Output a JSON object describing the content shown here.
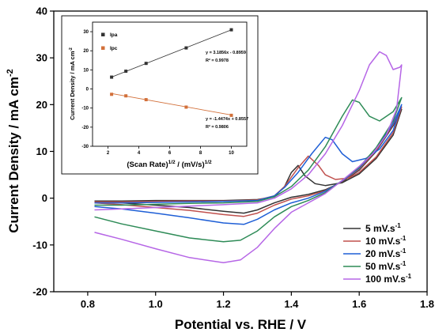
{
  "chart_data": [
    {
      "type": "line",
      "xlabel": "Potential vs. RHE / V",
      "ylabel": "Current Density / mA cm",
      "ylabel_sup": "-2",
      "xlim": [
        0.7,
        1.8
      ],
      "ylim": [
        -20,
        40
      ],
      "xticks": [
        "0.8",
        "1.0",
        "1.2",
        "1.4",
        "1.6",
        "1.8"
      ],
      "xtick_values": [
        0.8,
        1.0,
        1.2,
        1.4,
        1.6,
        1.8
      ],
      "yticks": [
        "-20",
        "-10",
        "0",
        "10",
        "20",
        "30",
        "40"
      ],
      "ytick_values": [
        -20,
        -10,
        0,
        10,
        20,
        30,
        40
      ],
      "grid": false,
      "legend_position": "bottom-right",
      "series": [
        {
          "name": "5 mV.s",
          "name_sup": "-1",
          "color": "#333333",
          "points": [
            [
              0.82,
              -0.6
            ],
            [
              0.9,
              -0.6
            ],
            [
              1.0,
              -0.5
            ],
            [
              1.1,
              -0.5
            ],
            [
              1.2,
              -0.5
            ],
            [
              1.3,
              -0.3
            ],
            [
              1.35,
              0.3
            ],
            [
              1.38,
              2.5
            ],
            [
              1.4,
              5.5
            ],
            [
              1.42,
              7.0
            ],
            [
              1.44,
              4.8
            ],
            [
              1.47,
              3.1
            ],
            [
              1.5,
              2.7
            ],
            [
              1.55,
              3.3
            ],
            [
              1.6,
              5.2
            ],
            [
              1.65,
              8.5
            ],
            [
              1.7,
              13.5
            ],
            [
              1.725,
              19.0
            ],
            [
              1.7,
              15.5
            ],
            [
              1.65,
              10.0
            ],
            [
              1.6,
              6.0
            ],
            [
              1.55,
              3.5
            ],
            [
              1.5,
              1.8
            ],
            [
              1.45,
              0.8
            ],
            [
              1.4,
              0.2
            ],
            [
              1.35,
              -1.0
            ],
            [
              1.3,
              -2.5
            ],
            [
              1.26,
              -3.2
            ],
            [
              1.2,
              -2.8
            ],
            [
              1.1,
              -2.0
            ],
            [
              1.0,
              -1.5
            ],
            [
              0.9,
              -1.0
            ],
            [
              0.82,
              -0.7
            ]
          ]
        },
        {
          "name": "10 mV.s",
          "name_sup": "-1",
          "color": "#c0504d",
          "points": [
            [
              0.82,
              -0.8
            ],
            [
              0.9,
              -0.8
            ],
            [
              1.0,
              -0.7
            ],
            [
              1.1,
              -0.6
            ],
            [
              1.2,
              -0.6
            ],
            [
              1.3,
              -0.4
            ],
            [
              1.35,
              0.5
            ],
            [
              1.38,
              2.5
            ],
            [
              1.42,
              6.5
            ],
            [
              1.45,
              9.0
            ],
            [
              1.48,
              7.0
            ],
            [
              1.5,
              5.0
            ],
            [
              1.53,
              4.0
            ],
            [
              1.57,
              4.3
            ],
            [
              1.6,
              5.5
            ],
            [
              1.65,
              8.8
            ],
            [
              1.7,
              14.0
            ],
            [
              1.725,
              19.5
            ],
            [
              1.7,
              15.8
            ],
            [
              1.65,
              10.2
            ],
            [
              1.6,
              6.2
            ],
            [
              1.55,
              3.6
            ],
            [
              1.5,
              1.6
            ],
            [
              1.45,
              0.5
            ],
            [
              1.4,
              -0.2
            ],
            [
              1.35,
              -1.5
            ],
            [
              1.3,
              -3.2
            ],
            [
              1.26,
              -3.9
            ],
            [
              1.2,
              -3.5
            ],
            [
              1.1,
              -2.6
            ],
            [
              1.0,
              -2.0
            ],
            [
              0.9,
              -1.4
            ],
            [
              0.82,
              -1.0
            ]
          ]
        },
        {
          "name": "20 mV.s",
          "name_sup": "-1",
          "color": "#1f5fd6",
          "points": [
            [
              0.82,
              -1.0
            ],
            [
              0.9,
              -1.0
            ],
            [
              1.0,
              -0.9
            ],
            [
              1.1,
              -0.8
            ],
            [
              1.2,
              -0.7
            ],
            [
              1.3,
              -0.5
            ],
            [
              1.35,
              0.5
            ],
            [
              1.38,
              2.3
            ],
            [
              1.42,
              5.5
            ],
            [
              1.46,
              9.5
            ],
            [
              1.5,
              13.0
            ],
            [
              1.52,
              12.5
            ],
            [
              1.55,
              9.5
            ],
            [
              1.58,
              7.8
            ],
            [
              1.62,
              8.5
            ],
            [
              1.66,
              10.5
            ],
            [
              1.7,
              14.5
            ],
            [
              1.725,
              20.0
            ],
            [
              1.7,
              16.0
            ],
            [
              1.65,
              10.5
            ],
            [
              1.6,
              6.4
            ],
            [
              1.55,
              3.7
            ],
            [
              1.5,
              1.5
            ],
            [
              1.45,
              0.0
            ],
            [
              1.4,
              -1.0
            ],
            [
              1.35,
              -2.5
            ],
            [
              1.3,
              -4.5
            ],
            [
              1.26,
              -5.6
            ],
            [
              1.2,
              -5.3
            ],
            [
              1.1,
              -4.2
            ],
            [
              1.0,
              -3.2
            ],
            [
              0.9,
              -2.3
            ],
            [
              0.82,
              -1.8
            ]
          ]
        },
        {
          "name": "50 mV.s",
          "name_sup": "-1",
          "color": "#2e8b57",
          "points": [
            [
              0.82,
              -1.5
            ],
            [
              0.9,
              -1.5
            ],
            [
              1.0,
              -1.3
            ],
            [
              1.1,
              -1.1
            ],
            [
              1.2,
              -1.0
            ],
            [
              1.3,
              -0.7
            ],
            [
              1.35,
              0.3
            ],
            [
              1.4,
              2.5
            ],
            [
              1.45,
              6.0
            ],
            [
              1.5,
              11.0
            ],
            [
              1.55,
              17.5
            ],
            [
              1.58,
              21.0
            ],
            [
              1.6,
              20.5
            ],
            [
              1.63,
              17.5
            ],
            [
              1.66,
              16.5
            ],
            [
              1.7,
              18.5
            ],
            [
              1.725,
              21.5
            ],
            [
              1.7,
              16.5
            ],
            [
              1.65,
              10.8
            ],
            [
              1.6,
              6.6
            ],
            [
              1.55,
              3.8
            ],
            [
              1.5,
              1.2
            ],
            [
              1.45,
              -0.5
            ],
            [
              1.4,
              -1.8
            ],
            [
              1.35,
              -4.0
            ],
            [
              1.3,
              -7.0
            ],
            [
              1.25,
              -9.0
            ],
            [
              1.2,
              -9.3
            ],
            [
              1.1,
              -8.5
            ],
            [
              1.0,
              -7.0
            ],
            [
              0.9,
              -5.5
            ],
            [
              0.82,
              -4.0
            ]
          ]
        },
        {
          "name": "100 mV.s",
          "name_sup": "-1",
          "color": "#b666e6",
          "points": [
            [
              0.82,
              -2.5
            ],
            [
              0.9,
              -2.3
            ],
            [
              1.0,
              -2.0
            ],
            [
              1.1,
              -1.7
            ],
            [
              1.2,
              -1.4
            ],
            [
              1.3,
              -1.0
            ],
            [
              1.35,
              0.0
            ],
            [
              1.4,
              2.0
            ],
            [
              1.45,
              5.0
            ],
            [
              1.5,
              9.5
            ],
            [
              1.55,
              15.5
            ],
            [
              1.6,
              23.0
            ],
            [
              1.63,
              28.5
            ],
            [
              1.66,
              31.3
            ],
            [
              1.68,
              30.5
            ],
            [
              1.7,
              27.5
            ],
            [
              1.72,
              28.0
            ],
            [
              1.725,
              28.5
            ],
            [
              1.71,
              19.0
            ],
            [
              1.68,
              13.5
            ],
            [
              1.64,
              9.5
            ],
            [
              1.6,
              6.8
            ],
            [
              1.55,
              3.8
            ],
            [
              1.5,
              1.0
            ],
            [
              1.45,
              -1.0
            ],
            [
              1.4,
              -3.0
            ],
            [
              1.35,
              -6.5
            ],
            [
              1.3,
              -10.5
            ],
            [
              1.25,
              -13.2
            ],
            [
              1.2,
              -13.8
            ],
            [
              1.1,
              -12.7
            ],
            [
              1.0,
              -10.8
            ],
            [
              0.9,
              -8.8
            ],
            [
              0.82,
              -7.3
            ]
          ]
        }
      ]
    },
    {
      "type": "scatter",
      "xlabel": "(Scan Rate)",
      "xlabel_sup1": "1/2",
      "xlabel_mid": " / (mV/s)",
      "xlabel_sup2": "1/2",
      "ylabel": "Current Density / mA cm",
      "ylabel_sup": "-2",
      "xlim": [
        1,
        11
      ],
      "ylim": [
        -30,
        35
      ],
      "xticks": [
        "2",
        "4",
        "6",
        "8",
        "10"
      ],
      "xtick_values": [
        2,
        4,
        6,
        8,
        10
      ],
      "yticks": [
        "-30",
        "-20",
        "-10",
        "0",
        "10",
        "20",
        "30"
      ],
      "ytick_values": [
        -30,
        -20,
        -10,
        0,
        10,
        20,
        30
      ],
      "legend_position": "top-left",
      "series": [
        {
          "name": "Ipa",
          "color": "#333333",
          "x": [
            2.236,
            3.162,
            4.472,
            7.071,
            10.0
          ],
          "y": [
            6.2,
            9.3,
            13.4,
            21.5,
            31.0
          ],
          "fit_label": "y = 3.1856x - 0.8959",
          "r2_label": "R² = 0.9978",
          "fit": [
            3.1856,
            -0.8959
          ]
        },
        {
          "name": "Ipc",
          "color": "#d2703a",
          "x": [
            2.236,
            3.162,
            4.472,
            7.071,
            10.0
          ],
          "y": [
            -2.8,
            -3.6,
            -5.6,
            -9.5,
            -13.8
          ],
          "fit_label": "y = -1.4474x + 0.8557",
          "r2_label": "R² = 0.9806",
          "fit": [
            -1.4474,
            0.8557
          ]
        }
      ]
    }
  ]
}
